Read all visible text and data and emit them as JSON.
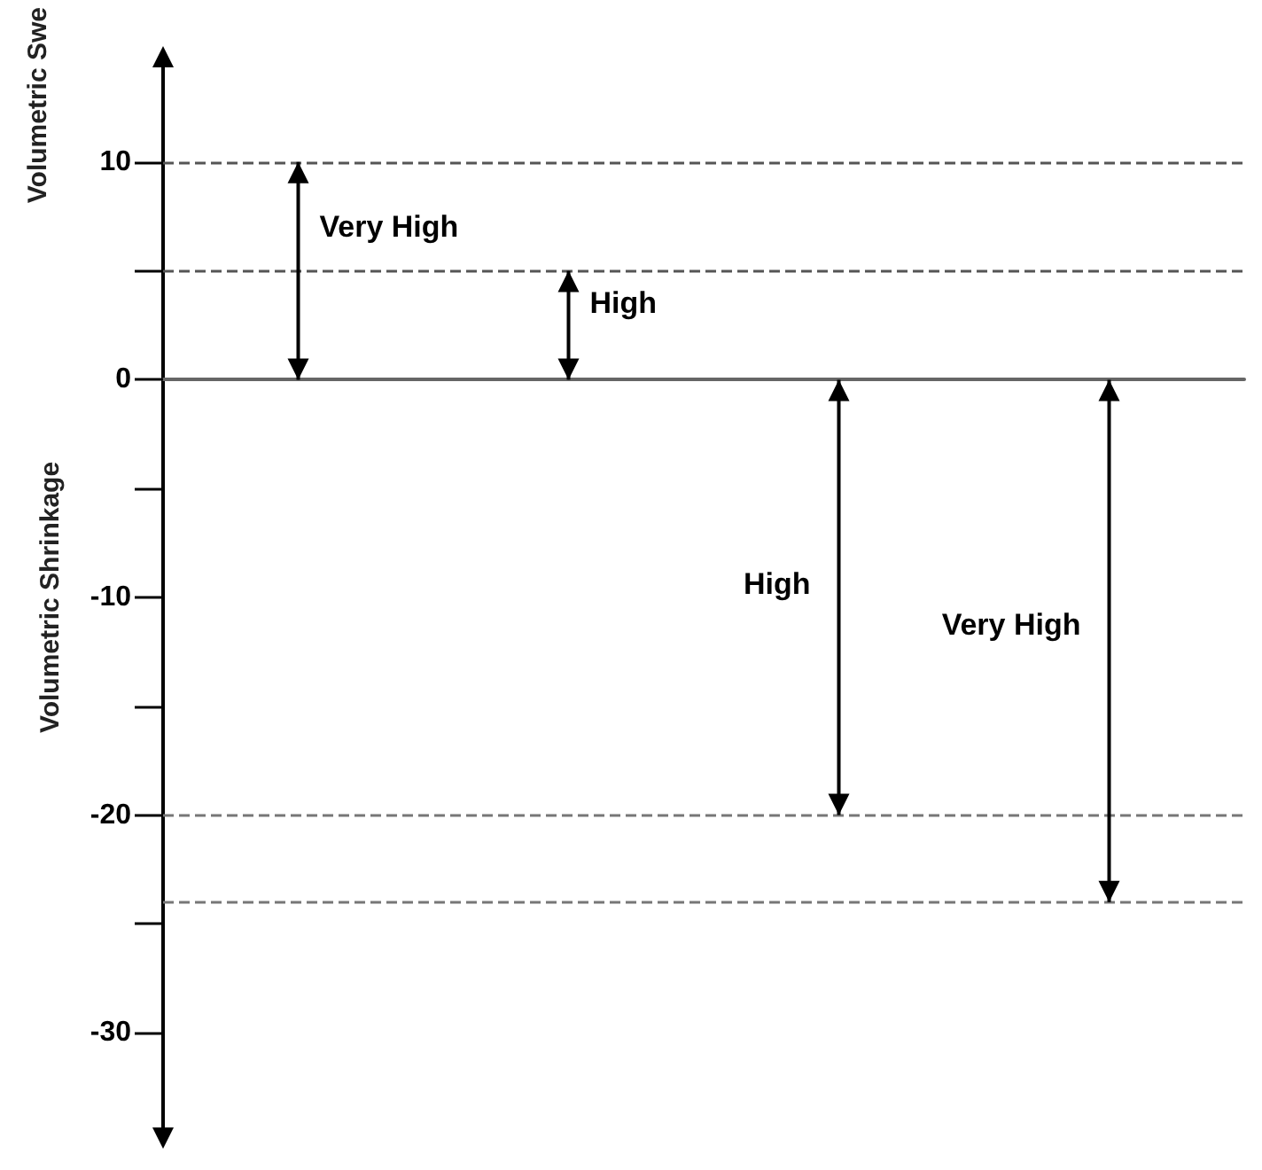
{
  "chart_data": {
    "type": "bar",
    "ylabel": "Volumetric Shrinkage",
    "annotations": [
      "Volumetric Swe",
      "Very High",
      "High",
      "High",
      "Very High"
    ],
    "categories": [
      null,
      null,
      null,
      null
    ],
    "series": [
      {
        "color": "#000000",
        "values": [
          10,
          5,
          -20,
          -24
        ]
      }
    ],
    "ylim": [
      -35,
      15
    ],
    "yticks": [
      {
        "value": -30,
        "label": "-30"
      },
      {
        "value": -25,
        "label": null
      },
      {
        "value": -20,
        "label": "-20"
      },
      {
        "value": -15,
        "label": null
      },
      {
        "value": -10,
        "label": "-10"
      },
      {
        "value": -5,
        "label": null
      },
      {
        "value": 0,
        "label": "0"
      },
      {
        "value": 5,
        "label": null
      },
      {
        "value": 10,
        "label": "10"
      }
    ],
    "tick_labels": "y",
    "ref_lines": [
      {
        "axis": "y",
        "value": 10,
        "line_style": "dashed",
        "color": "#555555"
      },
      {
        "axis": "y",
        "value": 5,
        "line_style": "dashed",
        "color": "#555555"
      },
      {
        "axis": "y",
        "value": -20,
        "line_style": "dashed",
        "color": "#777777"
      },
      {
        "axis": "y",
        "value": -24,
        "line_style": "dashed",
        "color": "#777777"
      }
    ],
    "grid": false
  }
}
